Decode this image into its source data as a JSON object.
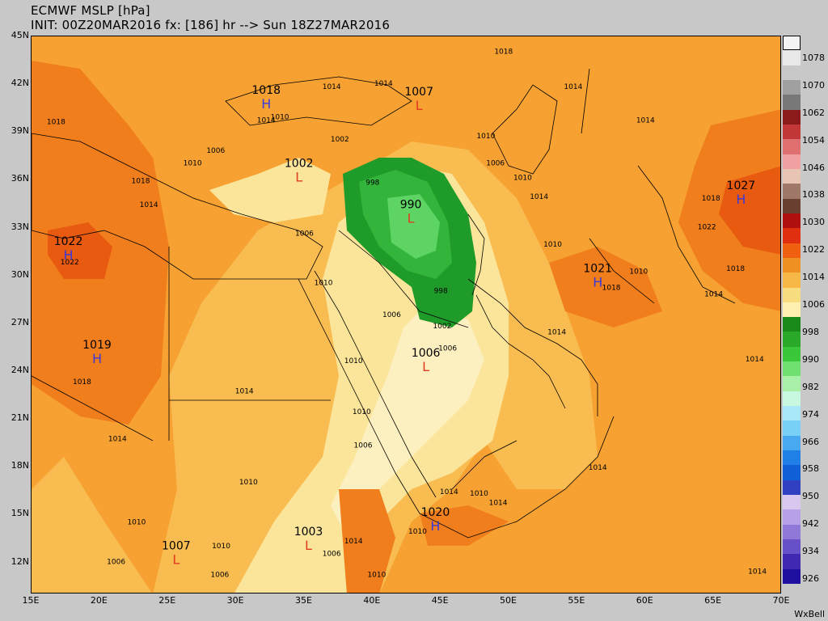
{
  "header": {
    "title": "ECMWF MSLP [hPa]",
    "init_line": "INIT: 00Z20MAR2016 fx: [186] hr --> Sun 18Z27MAR2016"
  },
  "axes": {
    "lat_labels": [
      "45N",
      "42N",
      "39N",
      "36N",
      "33N",
      "30N",
      "27N",
      "24N",
      "21N",
      "18N",
      "15N",
      "12N"
    ],
    "lon_labels": [
      "15E",
      "20E",
      "25E",
      "30E",
      "35E",
      "40E",
      "45E",
      "50E",
      "55E",
      "60E",
      "65E",
      "70E"
    ]
  },
  "pressure_centers": [
    {
      "kind": "H",
      "value": "1022",
      "lon": 17.7,
      "lat": 31.3,
      "color": "#3a3ad8"
    },
    {
      "kind": "H",
      "value": "1019",
      "lon": 19.8,
      "lat": 24.8,
      "color": "#3a3ad8"
    },
    {
      "kind": "H",
      "value": "1018",
      "lon": 32.2,
      "lat": 40.8,
      "color": "#3a3ad8"
    },
    {
      "kind": "L",
      "value": "1007",
      "lon": 43.4,
      "lat": 40.7,
      "color": "#e03a20"
    },
    {
      "kind": "L",
      "value": "1002",
      "lon": 34.6,
      "lat": 36.2,
      "color": "#e03a20"
    },
    {
      "kind": "L",
      "value": "990",
      "lon": 42.8,
      "lat": 33.6,
      "color": "#e03a20"
    },
    {
      "kind": "L",
      "value": "1006",
      "lon": 43.9,
      "lat": 24.3,
      "color": "#e03a20"
    },
    {
      "kind": "L",
      "value": "1007",
      "lon": 25.6,
      "lat": 12.2,
      "color": "#e03a20"
    },
    {
      "kind": "L",
      "value": "1003",
      "lon": 35.3,
      "lat": 13.1,
      "color": "#e03a20"
    },
    {
      "kind": "H",
      "value": "1020",
      "lon": 44.6,
      "lat": 14.3,
      "color": "#3a3ad8"
    },
    {
      "kind": "H",
      "value": "1021",
      "lon": 56.5,
      "lat": 29.6,
      "color": "#3a3ad8"
    },
    {
      "kind": "H",
      "value": "1027",
      "lon": 67.0,
      "lat": 34.8,
      "color": "#3a3ad8"
    }
  ],
  "isobar_labels": [
    {
      "text": "1022",
      "lon": 17.8,
      "lat": 30.7
    },
    {
      "text": "1018",
      "lon": 16.8,
      "lat": 39.5
    },
    {
      "text": "1018",
      "lon": 18.7,
      "lat": 23.2
    },
    {
      "text": "1014",
      "lon": 23.6,
      "lat": 34.3
    },
    {
      "text": "1018",
      "lon": 23.0,
      "lat": 35.8
    },
    {
      "text": "1010",
      "lon": 26.8,
      "lat": 36.9
    },
    {
      "text": "1006",
      "lon": 28.5,
      "lat": 37.7
    },
    {
      "text": "1014",
      "lon": 32.2,
      "lat": 39.6
    },
    {
      "text": "1010",
      "lon": 33.2,
      "lat": 39.8
    },
    {
      "text": "1014",
      "lon": 37.0,
      "lat": 41.7
    },
    {
      "text": "1014",
      "lon": 40.8,
      "lat": 41.9
    },
    {
      "text": "1018",
      "lon": 49.6,
      "lat": 43.9
    },
    {
      "text": "1014",
      "lon": 54.7,
      "lat": 41.7
    },
    {
      "text": "1014",
      "lon": 60.0,
      "lat": 39.6
    },
    {
      "text": "1010",
      "lon": 48.3,
      "lat": 38.6
    },
    {
      "text": "1006",
      "lon": 49.0,
      "lat": 36.9
    },
    {
      "text": "1010",
      "lon": 51.0,
      "lat": 36.0
    },
    {
      "text": "1014",
      "lon": 52.2,
      "lat": 34.8
    },
    {
      "text": "1010",
      "lon": 53.2,
      "lat": 31.8
    },
    {
      "text": "1014",
      "lon": 53.5,
      "lat": 26.3
    },
    {
      "text": "1018",
      "lon": 57.5,
      "lat": 29.1
    },
    {
      "text": "1018",
      "lon": 64.8,
      "lat": 34.7
    },
    {
      "text": "1022",
      "lon": 64.5,
      "lat": 32.9
    },
    {
      "text": "1010",
      "lon": 59.5,
      "lat": 30.1
    },
    {
      "text": "1014",
      "lon": 65.0,
      "lat": 28.7
    },
    {
      "text": "1018",
      "lon": 66.6,
      "lat": 30.3
    },
    {
      "text": "1014",
      "lon": 68.0,
      "lat": 24.6
    },
    {
      "text": "1002",
      "lon": 37.6,
      "lat": 38.4
    },
    {
      "text": "998",
      "lon": 40.0,
      "lat": 35.7
    },
    {
      "text": "998",
      "lon": 45.0,
      "lat": 28.9
    },
    {
      "text": "1002",
      "lon": 45.1,
      "lat": 26.7
    },
    {
      "text": "1006",
      "lon": 45.5,
      "lat": 25.3
    },
    {
      "text": "1006",
      "lon": 41.4,
      "lat": 27.4
    },
    {
      "text": "1006",
      "lon": 35.0,
      "lat": 32.5
    },
    {
      "text": "1010",
      "lon": 36.4,
      "lat": 29.4
    },
    {
      "text": "1010",
      "lon": 38.6,
      "lat": 24.5
    },
    {
      "text": "1014",
      "lon": 30.6,
      "lat": 22.6
    },
    {
      "text": "1014",
      "lon": 21.3,
      "lat": 19.6
    },
    {
      "text": "1010",
      "lon": 30.9,
      "lat": 16.9
    },
    {
      "text": "1010",
      "lon": 39.2,
      "lat": 21.3
    },
    {
      "text": "1006",
      "lon": 39.3,
      "lat": 19.2
    },
    {
      "text": "1010",
      "lon": 43.3,
      "lat": 13.8
    },
    {
      "text": "1014",
      "lon": 49.2,
      "lat": 15.6
    },
    {
      "text": "1014",
      "lon": 56.5,
      "lat": 17.8
    },
    {
      "text": "1010",
      "lon": 47.8,
      "lat": 16.2
    },
    {
      "text": "1014",
      "lon": 45.6,
      "lat": 16.3
    },
    {
      "text": "1010",
      "lon": 40.3,
      "lat": 11.1
    },
    {
      "text": "1006",
      "lon": 37.0,
      "lat": 12.4
    },
    {
      "text": "1010",
      "lon": 22.7,
      "lat": 14.4
    },
    {
      "text": "1006",
      "lon": 21.2,
      "lat": 11.9
    },
    {
      "text": "1006",
      "lon": 28.8,
      "lat": 11.1
    },
    {
      "text": "1010",
      "lon": 28.9,
      "lat": 12.9
    },
    {
      "text": "1014",
      "lon": 68.2,
      "lat": 11.3
    },
    {
      "text": "1014",
      "lon": 38.6,
      "lat": 13.2
    }
  ],
  "colorbar": {
    "labels": [
      "1078",
      "1070",
      "1062",
      "1054",
      "1046",
      "1038",
      "1030",
      "1022",
      "1014",
      "1006",
      "998",
      "990",
      "982",
      "974",
      "966",
      "958",
      "950",
      "942",
      "934",
      "926"
    ],
    "colors": [
      "#e8e8e8",
      "#c8c8c8",
      "#a0a0a0",
      "#787878",
      "#8b1a1a",
      "#c23838",
      "#e07070",
      "#f0a0a0",
      "#e8c4b4",
      "#a0786a",
      "#6a4030",
      "#b01010",
      "#e03010",
      "#f06010",
      "#f09020",
      "#f8b848",
      "#f8dc80",
      "#fff0b0",
      "#1a8a1a",
      "#2aa82a",
      "#3ac83a",
      "#70e070",
      "#a8f0a8",
      "#c8f8e0",
      "#a8e8f8",
      "#78d0f8",
      "#48a8f0",
      "#2080e8",
      "#1060d8",
      "#3040c0",
      "#d8c8f0",
      "#b8a0e8",
      "#9078d8",
      "#6850c8",
      "#4028b0",
      "#2010a0"
    ],
    "top_color": "#f4f4f4"
  },
  "branding": {
    "name": "WxBell"
  },
  "colors": {
    "orange_light": "#f8bc50",
    "orange_mid": "#f6a131",
    "orange_dark": "#f07e1c",
    "red_high": "#e85a10",
    "yellow": "#fbe59b",
    "pale": "#fdf0c0",
    "green_998": "#1f9b2a",
    "green_994": "#33b43b",
    "green_990": "#5ed465"
  }
}
